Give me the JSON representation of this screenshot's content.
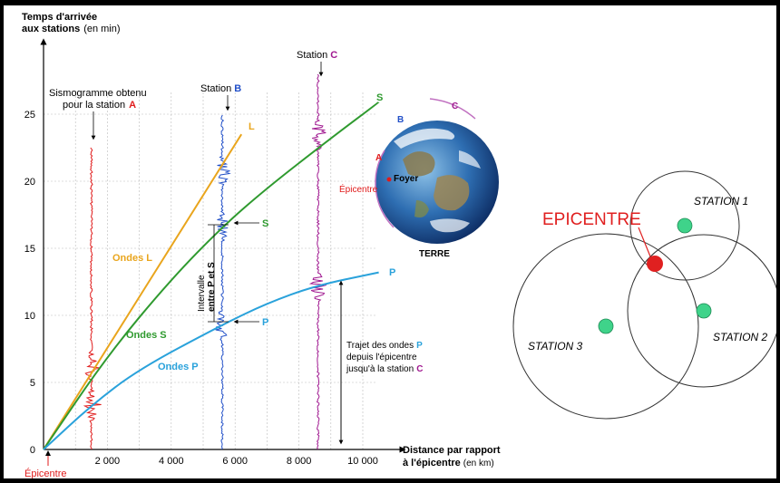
{
  "left_figure": {
    "y_axis_title_line1": "Temps d'arrivée",
    "y_axis_title_line2_bold": "aux stations",
    "y_axis_title_line2_unit": "(en min)",
    "x_axis_title_line1": "Distance par rapport",
    "x_axis_title_line2_bold": "à l'épicentre",
    "x_axis_title_line2_unit": "(en km)",
    "origin_label": "Épicentre",
    "seismogram_label_line1": "Sismogramme obtenu",
    "seismogram_label_line2": "pour la station",
    "seismogram_station_letter": "A",
    "station_b_label": "Station",
    "station_b_letter": "B",
    "station_c_label": "Station",
    "station_c_letter": "C",
    "curve_end_labels": {
      "L": "L",
      "S": "S",
      "P": "P"
    },
    "marker_s": "S",
    "marker_p": "P",
    "wave_labels": {
      "L": "Ondes L",
      "S": "Ondes S",
      "P": "Ondes P"
    },
    "interval_line1": "Intervalle",
    "interval_line2": "entre P et S",
    "trajet_line1": "Trajet des ondes",
    "trajet_letter_p": "P",
    "trajet_line2": "depuis l'épicentre",
    "trajet_line3": "jusqu'à la station",
    "trajet_letter_c": "C",
    "globe": {
      "letter_a": "A",
      "letter_b": "B",
      "letter_c": "C",
      "foyer": "Foyer",
      "epicentre": "Épicentre",
      "terre": "TERRE"
    }
  },
  "chart_data": {
    "type": "line",
    "ylim": [
      0,
      27
    ],
    "xlim": [
      0,
      11000
    ],
    "y_ticks": [
      0,
      5,
      10,
      15,
      20,
      25
    ],
    "y_tick_labels": [
      "0",
      "5",
      "10",
      "15",
      "20",
      "25"
    ],
    "x_ticks": [
      2000,
      4000,
      6000,
      8000,
      10000
    ],
    "x_tick_labels": [
      "2 000",
      "4 000",
      "6 000",
      "8 000",
      "10 000"
    ],
    "series": [
      {
        "name": "Ondes L",
        "color": "#e9a51d",
        "x": [
          0,
          6200
        ],
        "y": [
          0,
          23.5
        ]
      },
      {
        "name": "Ondes S",
        "color": "#2f9a2f",
        "x": [
          0,
          2000,
          4000,
          5600,
          7000,
          9000,
          10500
        ],
        "y": [
          0,
          7.0,
          12.7,
          16.6,
          19.5,
          23.2,
          25.9
        ]
      },
      {
        "name": "Ondes P",
        "color": "#2aa2db",
        "x": [
          0,
          1500,
          3000,
          5600,
          7000,
          8500,
          10500
        ],
        "y": [
          0,
          3.3,
          6.0,
          9.3,
          10.9,
          12.2,
          13.2
        ]
      }
    ],
    "seismograms": [
      {
        "station": "A",
        "x": 1500,
        "color": "#e01b1b"
      },
      {
        "station": "B",
        "x": 5600,
        "color": "#2250c8"
      },
      {
        "station": "C",
        "x": 8600,
        "color": "#a01890"
      }
    ]
  },
  "right_figure": {
    "epicentre_label": "EPICENTRE",
    "station1": "STATION 1",
    "station2": "STATION 2",
    "station3": "STATION 3"
  },
  "colors": {
    "red": "#e01b1b",
    "blue": "#2250c8",
    "purple": "#a01890",
    "orange": "#e9a51d",
    "green": "#2f9a2f",
    "lightblue": "#2aa2db",
    "station_dot": "#3fd38a"
  }
}
